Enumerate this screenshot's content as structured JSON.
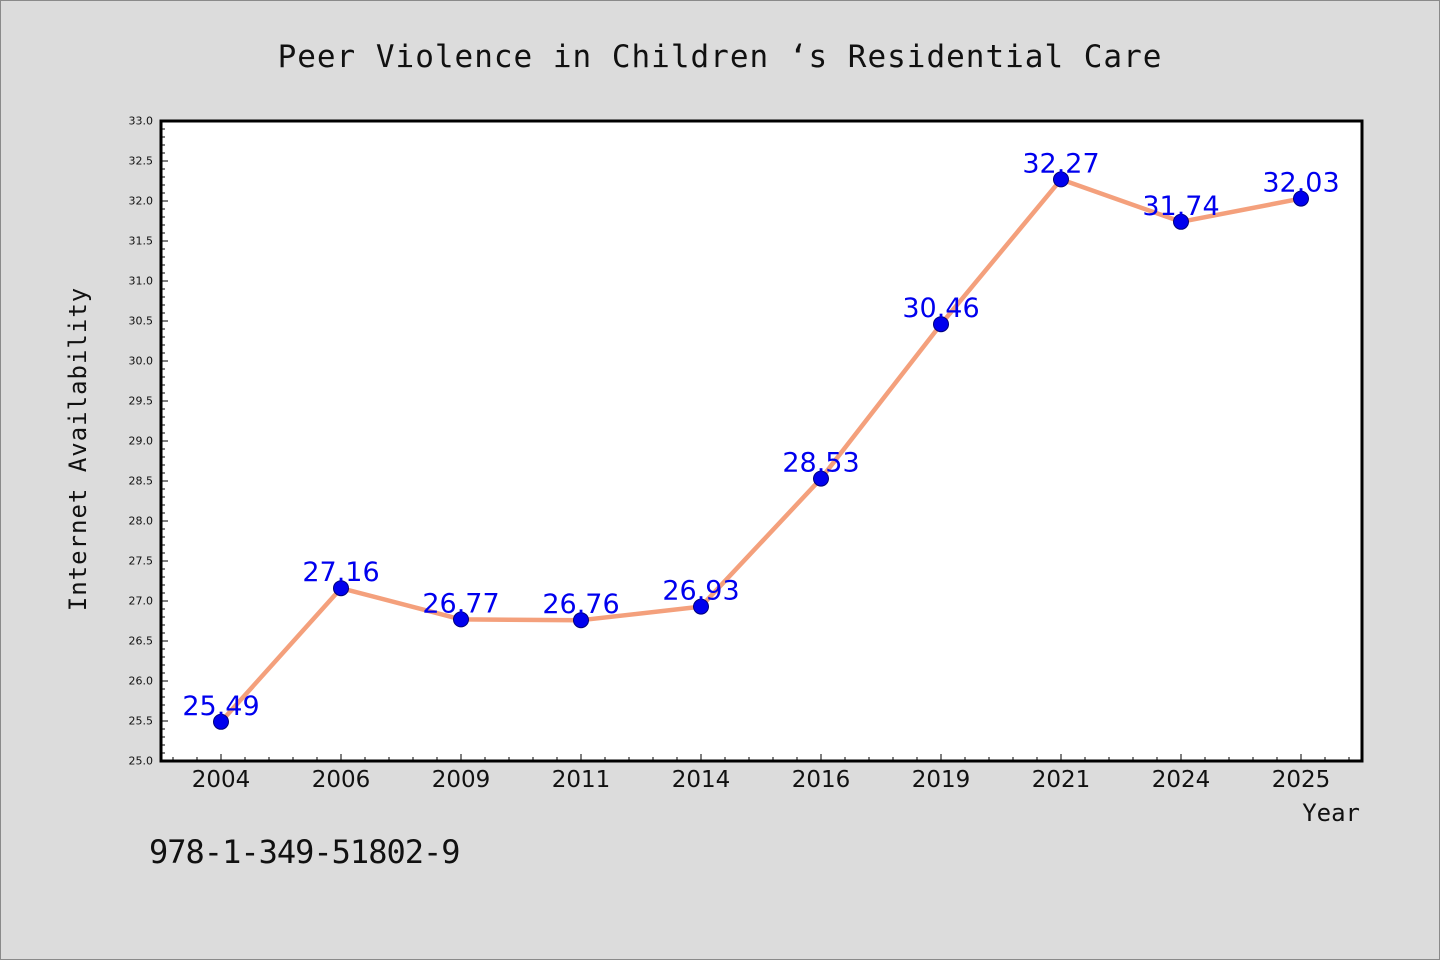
{
  "chart_data": {
    "type": "line",
    "title": "Peer Violence in Children ‘s Residential Care",
    "xlabel": "Year",
    "ylabel": "Internet Availability",
    "categories": [
      "2004",
      "2006",
      "2009",
      "2011",
      "2014",
      "2016",
      "2019",
      "2021",
      "2024",
      "2025"
    ],
    "series": [
      {
        "values": [
          25.49,
          27.16,
          26.77,
          26.76,
          26.93,
          28.53,
          30.46,
          32.27,
          31.74,
          32.03
        ],
        "labels": [
          "25.49",
          "27.16",
          "26.77",
          "26.76",
          "26.93",
          "28.53",
          "30.46",
          "32.27",
          "31.74",
          "32.03"
        ],
        "line_color": "#f4a07c",
        "marker_color": "#0000ee",
        "label_color": "#0000ee"
      }
    ],
    "ylim": [
      25.0,
      33.0
    ],
    "yticks": [
      "25.0",
      "25.5",
      "26.0",
      "26.5",
      "27.0",
      "27.5",
      "28.0",
      "28.5",
      "29.0",
      "29.5",
      "30.0",
      "30.5",
      "31.0",
      "31.5",
      "32.0",
      "32.5",
      "33.0"
    ],
    "grid": false,
    "legend": "none"
  },
  "footnote": "978-1-349-51802-9",
  "colors": {
    "background": "#dcdcdc",
    "plot_area": "#ffffff",
    "axis": "#000000"
  }
}
